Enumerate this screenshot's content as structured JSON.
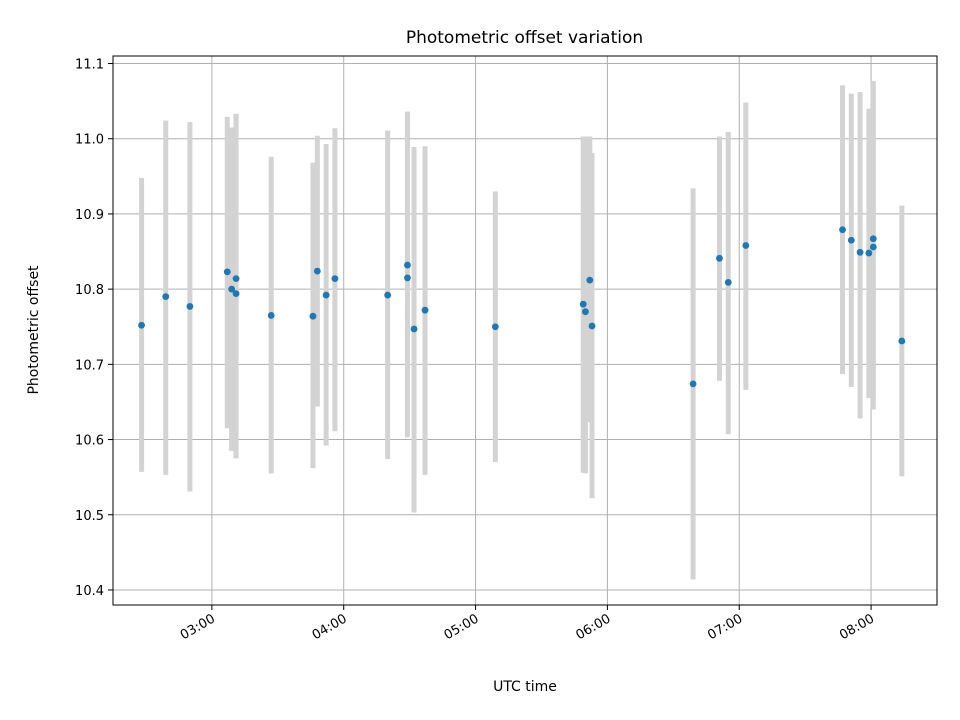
{
  "chart_data": {
    "type": "scatter",
    "title": "Photometric offset variation",
    "xlabel": "UTC time",
    "ylabel": "Photometric offset",
    "xlim": [
      "02:15",
      "08:30"
    ],
    "ylim": [
      10.38,
      11.11
    ],
    "x_ticks": [
      "03:00",
      "04:00",
      "05:00",
      "06:00",
      "07:00",
      "08:00"
    ],
    "y_ticks": [
      "10.4",
      "10.5",
      "10.6",
      "10.7",
      "10.8",
      "10.9",
      "11.0",
      "11.1"
    ],
    "grid": true,
    "marker_color": "#1f77b4",
    "errorbar_color": "#d3d3d3",
    "points": [
      {
        "x": "02:28",
        "y": 10.752,
        "ylow": 10.557,
        "yhigh": 10.948
      },
      {
        "x": "02:39",
        "y": 10.79,
        "ylow": 10.553,
        "yhigh": 11.024
      },
      {
        "x": "02:50",
        "y": 10.777,
        "ylow": 10.531,
        "yhigh": 11.022
      },
      {
        "x": "03:07",
        "y": 10.823,
        "ylow": 10.615,
        "yhigh": 11.029
      },
      {
        "x": "03:09",
        "y": 10.8,
        "ylow": 10.585,
        "yhigh": 11.015
      },
      {
        "x": "03:11",
        "y": 10.794,
        "ylow": 10.575,
        "yhigh": 11.033
      },
      {
        "x": "03:11",
        "y": 10.814,
        "ylow": 10.595,
        "yhigh": 11.033
      },
      {
        "x": "03:27",
        "y": 10.765,
        "ylow": 10.555,
        "yhigh": 10.976
      },
      {
        "x": "03:46",
        "y": 10.764,
        "ylow": 10.562,
        "yhigh": 10.968
      },
      {
        "x": "03:48",
        "y": 10.824,
        "ylow": 10.644,
        "yhigh": 11.004
      },
      {
        "x": "03:52",
        "y": 10.792,
        "ylow": 10.592,
        "yhigh": 10.993
      },
      {
        "x": "03:56",
        "y": 10.814,
        "ylow": 10.611,
        "yhigh": 11.014
      },
      {
        "x": "04:20",
        "y": 10.792,
        "ylow": 10.574,
        "yhigh": 11.011
      },
      {
        "x": "04:29",
        "y": 10.832,
        "ylow": 10.63,
        "yhigh": 11.036
      },
      {
        "x": "04:29",
        "y": 10.815,
        "ylow": 10.603,
        "yhigh": 11.027
      },
      {
        "x": "04:32",
        "y": 10.747,
        "ylow": 10.503,
        "yhigh": 10.989
      },
      {
        "x": "04:37",
        "y": 10.772,
        "ylow": 10.553,
        "yhigh": 10.99
      },
      {
        "x": "05:09",
        "y": 10.75,
        "ylow": 10.57,
        "yhigh": 10.93
      },
      {
        "x": "05:49",
        "y": 10.78,
        "ylow": 10.556,
        "yhigh": 11.003
      },
      {
        "x": "05:50",
        "y": 10.77,
        "ylow": 10.555,
        "yhigh": 11.003
      },
      {
        "x": "05:52",
        "y": 10.812,
        "ylow": 10.623,
        "yhigh": 11.003
      },
      {
        "x": "05:53",
        "y": 10.751,
        "ylow": 10.522,
        "yhigh": 10.981
      },
      {
        "x": "06:39",
        "y": 10.674,
        "ylow": 10.414,
        "yhigh": 10.934
      },
      {
        "x": "06:51",
        "y": 10.841,
        "ylow": 10.678,
        "yhigh": 11.003
      },
      {
        "x": "06:55",
        "y": 10.809,
        "ylow": 10.607,
        "yhigh": 11.009
      },
      {
        "x": "07:03",
        "y": 10.858,
        "ylow": 10.666,
        "yhigh": 11.048
      },
      {
        "x": "07:47",
        "y": 10.879,
        "ylow": 10.687,
        "yhigh": 11.071
      },
      {
        "x": "07:51",
        "y": 10.865,
        "ylow": 10.67,
        "yhigh": 11.06
      },
      {
        "x": "07:55",
        "y": 10.849,
        "ylow": 10.628,
        "yhigh": 11.062
      },
      {
        "x": "07:59",
        "y": 10.848,
        "ylow": 10.655,
        "yhigh": 11.04
      },
      {
        "x": "08:01",
        "y": 10.867,
        "ylow": 10.657,
        "yhigh": 11.077
      },
      {
        "x": "08:01",
        "y": 10.856,
        "ylow": 10.64,
        "yhigh": 11.071
      },
      {
        "x": "08:14",
        "y": 10.731,
        "ylow": 10.551,
        "yhigh": 10.911
      }
    ]
  }
}
